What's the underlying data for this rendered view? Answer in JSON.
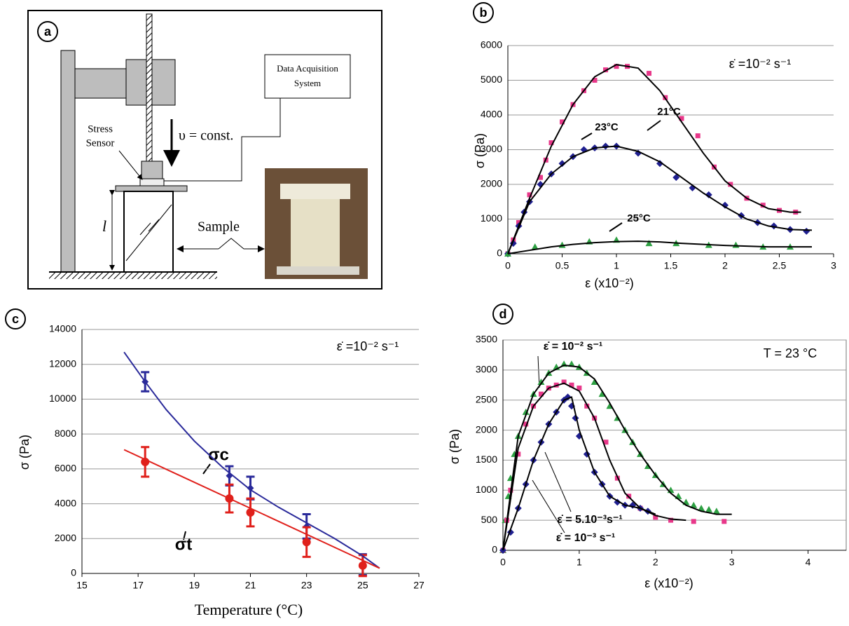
{
  "diagram": {
    "panel": "a",
    "daq": [
      "Data Acquisition",
      "System"
    ],
    "sensor": [
      "Stress",
      "Sensor"
    ],
    "velocity": "υ = const.",
    "sample": "Sample",
    "length": "l"
  },
  "chart_data": [
    {
      "type": "scatter",
      "panel": "b",
      "ylabel": "σ (Pa)",
      "xlabel": "ε (x10⁻²)",
      "annotations": [
        "ε̇ =10⁻² s⁻¹"
      ],
      "xlim": [
        0,
        3
      ],
      "xticks": [
        0,
        0.5,
        1,
        1.5,
        2,
        2.5,
        3
      ],
      "ylim": [
        0,
        6000
      ],
      "yticks": [
        0,
        1000,
        2000,
        3000,
        4000,
        5000,
        6000
      ],
      "grid": true,
      "frame": false,
      "series": [
        {
          "name": "21°C",
          "color": "#e8388a",
          "marker": "square",
          "x": [
            0,
            0.05,
            0.1,
            0.2,
            0.3,
            0.35,
            0.4,
            0.5,
            0.6,
            0.7,
            0.8,
            0.9,
            1.0,
            1.1,
            1.3,
            1.45,
            1.6,
            1.75,
            1.9,
            2.05,
            2.2,
            2.35,
            2.5,
            2.65
          ],
          "values": [
            0,
            400,
            900,
            1700,
            2200,
            2700,
            3200,
            3800,
            4300,
            4700,
            5000,
            5300,
            5400,
            5400,
            5200,
            4500,
            3900,
            3400,
            2500,
            2000,
            1600,
            1400,
            1250,
            1200
          ]
        },
        {
          "name": "23°C",
          "color": "#1f1f8f",
          "marker": "diamond",
          "x": [
            0,
            0.05,
            0.1,
            0.15,
            0.2,
            0.3,
            0.4,
            0.5,
            0.6,
            0.7,
            0.8,
            0.9,
            1.0,
            1.2,
            1.4,
            1.55,
            1.7,
            1.85,
            2.0,
            2.15,
            2.3,
            2.45,
            2.6,
            2.75
          ],
          "values": [
            0,
            300,
            800,
            1200,
            1500,
            2000,
            2300,
            2600,
            2800,
            3000,
            3050,
            3100,
            3100,
            2900,
            2600,
            2200,
            1900,
            1700,
            1400,
            1100,
            900,
            800,
            700,
            650
          ]
        },
        {
          "name": "25°C",
          "color": "#2ea043",
          "marker": "triangle",
          "x": [
            0,
            0.25,
            0.5,
            0.75,
            1.0,
            1.3,
            1.55,
            1.85,
            2.1,
            2.35,
            2.6
          ],
          "values": [
            0,
            200,
            250,
            350,
            400,
            300,
            300,
            250,
            250,
            200,
            200
          ]
        },
        {
          "color": "#000000",
          "marker": "none",
          "x": [
            0,
            0.2,
            0.4,
            0.6,
            0.8,
            1.0,
            1.2,
            1.4,
            1.6,
            1.8,
            2.0,
            2.2,
            2.4,
            2.6,
            2.7
          ],
          "values": [
            0,
            1600,
            3100,
            4300,
            5100,
            5450,
            5350,
            4700,
            3800,
            2900,
            2100,
            1600,
            1300,
            1200,
            1200
          ]
        },
        {
          "color": "#000000",
          "marker": "none",
          "x": [
            0,
            0.2,
            0.4,
            0.6,
            0.8,
            1.0,
            1.2,
            1.4,
            1.6,
            1.8,
            2.0,
            2.2,
            2.4,
            2.6,
            2.8
          ],
          "values": [
            0,
            1500,
            2300,
            2800,
            3050,
            3100,
            2950,
            2650,
            2200,
            1750,
            1350,
            1000,
            800,
            700,
            680
          ]
        },
        {
          "color": "#000000",
          "marker": "none",
          "x": [
            0,
            0.2,
            0.4,
            0.6,
            0.8,
            1.0,
            1.2,
            1.4,
            1.6,
            1.8,
            2.0,
            2.2,
            2.4,
            2.6,
            2.8
          ],
          "values": [
            0,
            100,
            200,
            270,
            320,
            350,
            360,
            340,
            300,
            270,
            240,
            220,
            200,
            200,
            200
          ]
        }
      ]
    },
    {
      "type": "scatter",
      "panel": "c",
      "ylabel": "σ (Pa)",
      "xlabel": "Temperature (°C)",
      "annotations": [
        "ε̇ =10⁻² s⁻¹"
      ],
      "xlim": [
        15,
        27
      ],
      "xticks": [
        15,
        17,
        19,
        21,
        23,
        25,
        27
      ],
      "ylim": [
        0,
        14000
      ],
      "yticks": [
        0,
        2000,
        4000,
        6000,
        8000,
        10000,
        12000,
        14000
      ],
      "grid": true,
      "frame": false,
      "series": [
        {
          "name": "σc",
          "color": "#2a2a9a",
          "marker": "diamond",
          "x": [
            17.25,
            20.25,
            21,
            23,
            25
          ],
          "values": [
            11000,
            5600,
            4900,
            2700,
            500
          ],
          "errors": [
            550,
            550,
            650,
            700,
            600
          ]
        },
        {
          "name": "σt",
          "color": "#e0201b",
          "marker": "circle",
          "x": [
            17.25,
            20.25,
            21,
            23,
            25
          ],
          "values": [
            6400,
            4300,
            3500,
            1800,
            450
          ],
          "errors": [
            850,
            800,
            800,
            850,
            600
          ]
        },
        {
          "color": "#2a2a9a",
          "marker": "none",
          "x": [
            16.5,
            17.25,
            18,
            19,
            20,
            21,
            22,
            23,
            24,
            25,
            25.6
          ],
          "values": [
            12700,
            11000,
            9400,
            7600,
            6100,
            4800,
            3800,
            2900,
            2000,
            1000,
            300
          ]
        },
        {
          "color": "#e0201b",
          "marker": "none",
          "x": [
            16.5,
            25.6
          ],
          "values": [
            7100,
            300
          ]
        }
      ]
    },
    {
      "type": "scatter",
      "panel": "d",
      "ylabel": "σ (Pa)",
      "xlabel": "ε (x10⁻²)",
      "annotations": [
        "T = 23 °C"
      ],
      "xlim": [
        0,
        4.5
      ],
      "xticks": [
        0,
        1,
        2,
        3,
        4
      ],
      "ylim": [
        0,
        3500
      ],
      "yticks": [
        0,
        500,
        1000,
        1500,
        2000,
        2500,
        3000,
        3500
      ],
      "grid": true,
      "frame": true,
      "series": [
        {
          "name": "ε̇ = 10⁻² s⁻¹",
          "color": "#2ea043",
          "marker": "triangle",
          "x": [
            0,
            0.03,
            0.07,
            0.1,
            0.15,
            0.2,
            0.3,
            0.4,
            0.5,
            0.6,
            0.7,
            0.8,
            0.9,
            1.0,
            1.1,
            1.2,
            1.3,
            1.4,
            1.5,
            1.6,
            1.7,
            1.8,
            1.9,
            2.0,
            2.1,
            2.2,
            2.3,
            2.4,
            2.5,
            2.6,
            2.7,
            2.8
          ],
          "values": [
            0,
            500,
            900,
            1200,
            1600,
            1900,
            2300,
            2600,
            2800,
            2950,
            3050,
            3100,
            3100,
            3050,
            2950,
            2800,
            2600,
            2400,
            2200,
            2000,
            1800,
            1600,
            1400,
            1250,
            1100,
            1000,
            900,
            800,
            750,
            700,
            680,
            650
          ]
        },
        {
          "name": "ε̇ = 5.10⁻³s⁻¹",
          "color": "#e8388a",
          "marker": "square",
          "x": [
            0,
            0.05,
            0.1,
            0.2,
            0.3,
            0.4,
            0.5,
            0.6,
            0.7,
            0.8,
            0.9,
            1.0,
            1.1,
            1.2,
            1.35,
            1.5,
            1.65,
            1.8,
            2.0,
            2.2,
            2.5,
            2.9
          ],
          "values": [
            0,
            500,
            1000,
            1600,
            2100,
            2400,
            2600,
            2700,
            2750,
            2800,
            2750,
            2700,
            2400,
            2200,
            1800,
            1200,
            900,
            700,
            550,
            500,
            480,
            480
          ]
        },
        {
          "name": "ε̇ = 10⁻³ s⁻¹",
          "color": "#1f1f8f",
          "marker": "diamond",
          "x": [
            0,
            0.1,
            0.2,
            0.3,
            0.4,
            0.5,
            0.6,
            0.7,
            0.8,
            0.85,
            0.9,
            0.95,
            1.0,
            1.1,
            1.2,
            1.3,
            1.4,
            1.5,
            1.6,
            1.7,
            1.8,
            1.9
          ],
          "values": [
            0,
            300,
            700,
            1100,
            1500,
            1800,
            2100,
            2300,
            2500,
            2550,
            2400,
            2200,
            1900,
            1600,
            1300,
            1100,
            900,
            800,
            750,
            750,
            700,
            650
          ]
        },
        {
          "color": "#000000",
          "marker": "none",
          "x": [
            0,
            0.2,
            0.4,
            0.6,
            0.8,
            1.0,
            1.2,
            1.4,
            1.6,
            1.8,
            2.0,
            2.2,
            2.4,
            2.6,
            2.8,
            3.0
          ],
          "values": [
            0,
            1900,
            2600,
            2950,
            3080,
            3050,
            2850,
            2450,
            2000,
            1600,
            1250,
            950,
            750,
            650,
            600,
            600
          ]
        },
        {
          "color": "#000000",
          "marker": "none",
          "x": [
            0,
            0.2,
            0.4,
            0.6,
            0.8,
            1.0,
            1.2,
            1.4,
            1.6,
            1.8,
            2.0,
            2.2,
            2.4
          ],
          "values": [
            0,
            1700,
            2400,
            2700,
            2780,
            2650,
            2200,
            1500,
            950,
            700,
            580,
            520,
            500
          ]
        },
        {
          "color": "#000000",
          "marker": "none",
          "x": [
            0,
            0.2,
            0.4,
            0.6,
            0.8,
            0.9,
            1.0,
            1.2,
            1.4,
            1.6,
            1.8,
            2.0
          ],
          "values": [
            0,
            700,
            1500,
            2100,
            2500,
            2550,
            2000,
            1300,
            900,
            750,
            700,
            600
          ]
        }
      ]
    }
  ]
}
